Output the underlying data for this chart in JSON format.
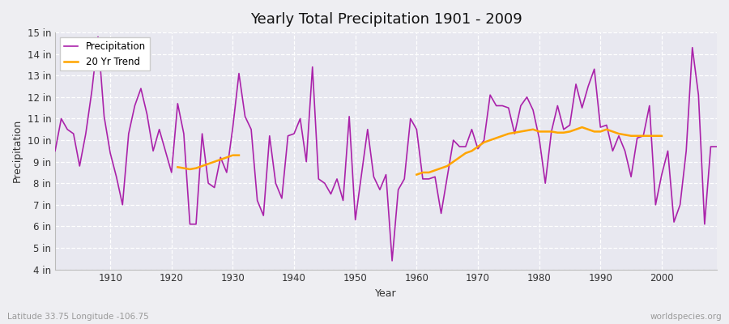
{
  "title": "Yearly Total Precipitation 1901 - 2009",
  "xlabel": "Year",
  "ylabel": "Precipitation",
  "subtitle": "Latitude 33.75 Longitude -106.75",
  "watermark": "worldspecies.org",
  "legend_labels": [
    "Precipitation",
    "20 Yr Trend"
  ],
  "precip_color": "#AA22AA",
  "trend_color": "#FFA500",
  "bg_color": "#EEEEF2",
  "plot_bg_color": "#E8E8F0",
  "ylim": [
    4,
    15
  ],
  "yticks": [
    4,
    5,
    6,
    7,
    8,
    9,
    10,
    11,
    12,
    13,
    14,
    15
  ],
  "ytick_labels": [
    "4 in",
    "5 in",
    "6 in",
    "7 in",
    "8 in",
    "9 in",
    "10 in",
    "11 in",
    "12 in",
    "13 in",
    "14 in",
    "15 in"
  ],
  "years": [
    1901,
    1902,
    1903,
    1904,
    1905,
    1906,
    1907,
    1908,
    1909,
    1910,
    1911,
    1912,
    1913,
    1914,
    1915,
    1916,
    1917,
    1918,
    1919,
    1920,
    1921,
    1922,
    1923,
    1924,
    1925,
    1926,
    1927,
    1928,
    1929,
    1930,
    1931,
    1932,
    1933,
    1934,
    1935,
    1936,
    1937,
    1938,
    1939,
    1940,
    1941,
    1942,
    1943,
    1944,
    1945,
    1946,
    1947,
    1948,
    1949,
    1950,
    1951,
    1952,
    1953,
    1954,
    1955,
    1956,
    1957,
    1958,
    1959,
    1960,
    1961,
    1962,
    1963,
    1964,
    1965,
    1966,
    1967,
    1968,
    1969,
    1970,
    1971,
    1972,
    1973,
    1974,
    1975,
    1976,
    1977,
    1978,
    1979,
    1980,
    1981,
    1982,
    1983,
    1984,
    1985,
    1986,
    1987,
    1988,
    1989,
    1990,
    1991,
    1992,
    1993,
    1994,
    1995,
    1996,
    1997,
    1998,
    1999,
    2000,
    2001,
    2002,
    2003,
    2004,
    2005,
    2006,
    2007,
    2008,
    2009
  ],
  "precip": [
    9.5,
    11.0,
    10.5,
    10.3,
    8.8,
    10.3,
    12.3,
    14.8,
    11.1,
    9.4,
    8.3,
    7.0,
    10.3,
    11.6,
    12.4,
    11.2,
    9.5,
    10.5,
    9.5,
    8.5,
    11.7,
    10.3,
    6.1,
    6.1,
    10.3,
    8.0,
    7.8,
    9.2,
    8.5,
    10.6,
    13.1,
    11.1,
    10.5,
    7.2,
    6.5,
    10.2,
    8.0,
    7.3,
    10.2,
    10.3,
    11.0,
    9.0,
    13.4,
    8.2,
    8.0,
    7.5,
    8.2,
    7.2,
    11.1,
    6.3,
    8.4,
    10.5,
    8.3,
    7.7,
    8.4,
    4.4,
    7.7,
    8.2,
    11.0,
    10.5,
    8.2,
    8.2,
    8.3,
    6.6,
    8.3,
    10.0,
    9.7,
    9.7,
    10.5,
    9.6,
    10.0,
    12.1,
    11.6,
    11.6,
    11.5,
    10.3,
    11.6,
    12.0,
    11.4,
    10.1,
    8.0,
    10.4,
    11.6,
    10.5,
    10.7,
    12.6,
    11.5,
    12.5,
    13.3,
    10.6,
    10.7,
    9.5,
    10.2,
    9.5,
    8.3,
    10.1,
    10.2,
    11.6,
    7.0,
    8.4,
    9.5,
    6.2,
    7.0,
    9.5,
    14.3,
    12.1,
    6.1,
    9.7,
    9.7
  ],
  "trend_seg1_years": [
    1921,
    1922,
    1923,
    1924,
    1925,
    1926,
    1927,
    1928,
    1929,
    1930,
    1931
  ],
  "trend_seg1_vals": [
    8.75,
    8.7,
    8.65,
    8.7,
    8.8,
    8.9,
    9.0,
    9.1,
    9.2,
    9.3,
    9.3
  ],
  "trend_seg2_years": [
    1960,
    1961,
    1962,
    1963,
    1964,
    1965,
    1966,
    1967,
    1968,
    1969,
    1970,
    1971,
    1972,
    1973,
    1974,
    1975,
    1976,
    1977,
    1978,
    1979,
    1980,
    1981,
    1982,
    1983,
    1984,
    1985,
    1986,
    1987,
    1988,
    1989,
    1990,
    1991,
    1992,
    1993,
    1994,
    1995,
    1996,
    1997,
    1998,
    1999,
    2000
  ],
  "trend_seg2_vals": [
    8.4,
    8.5,
    8.5,
    8.6,
    8.7,
    8.8,
    9.0,
    9.2,
    9.4,
    9.5,
    9.7,
    9.9,
    10.0,
    10.1,
    10.2,
    10.3,
    10.35,
    10.4,
    10.45,
    10.5,
    10.4,
    10.4,
    10.4,
    10.35,
    10.35,
    10.4,
    10.5,
    10.6,
    10.5,
    10.4,
    10.4,
    10.5,
    10.4,
    10.3,
    10.25,
    10.2,
    10.2,
    10.2,
    10.2,
    10.2,
    10.2
  ]
}
